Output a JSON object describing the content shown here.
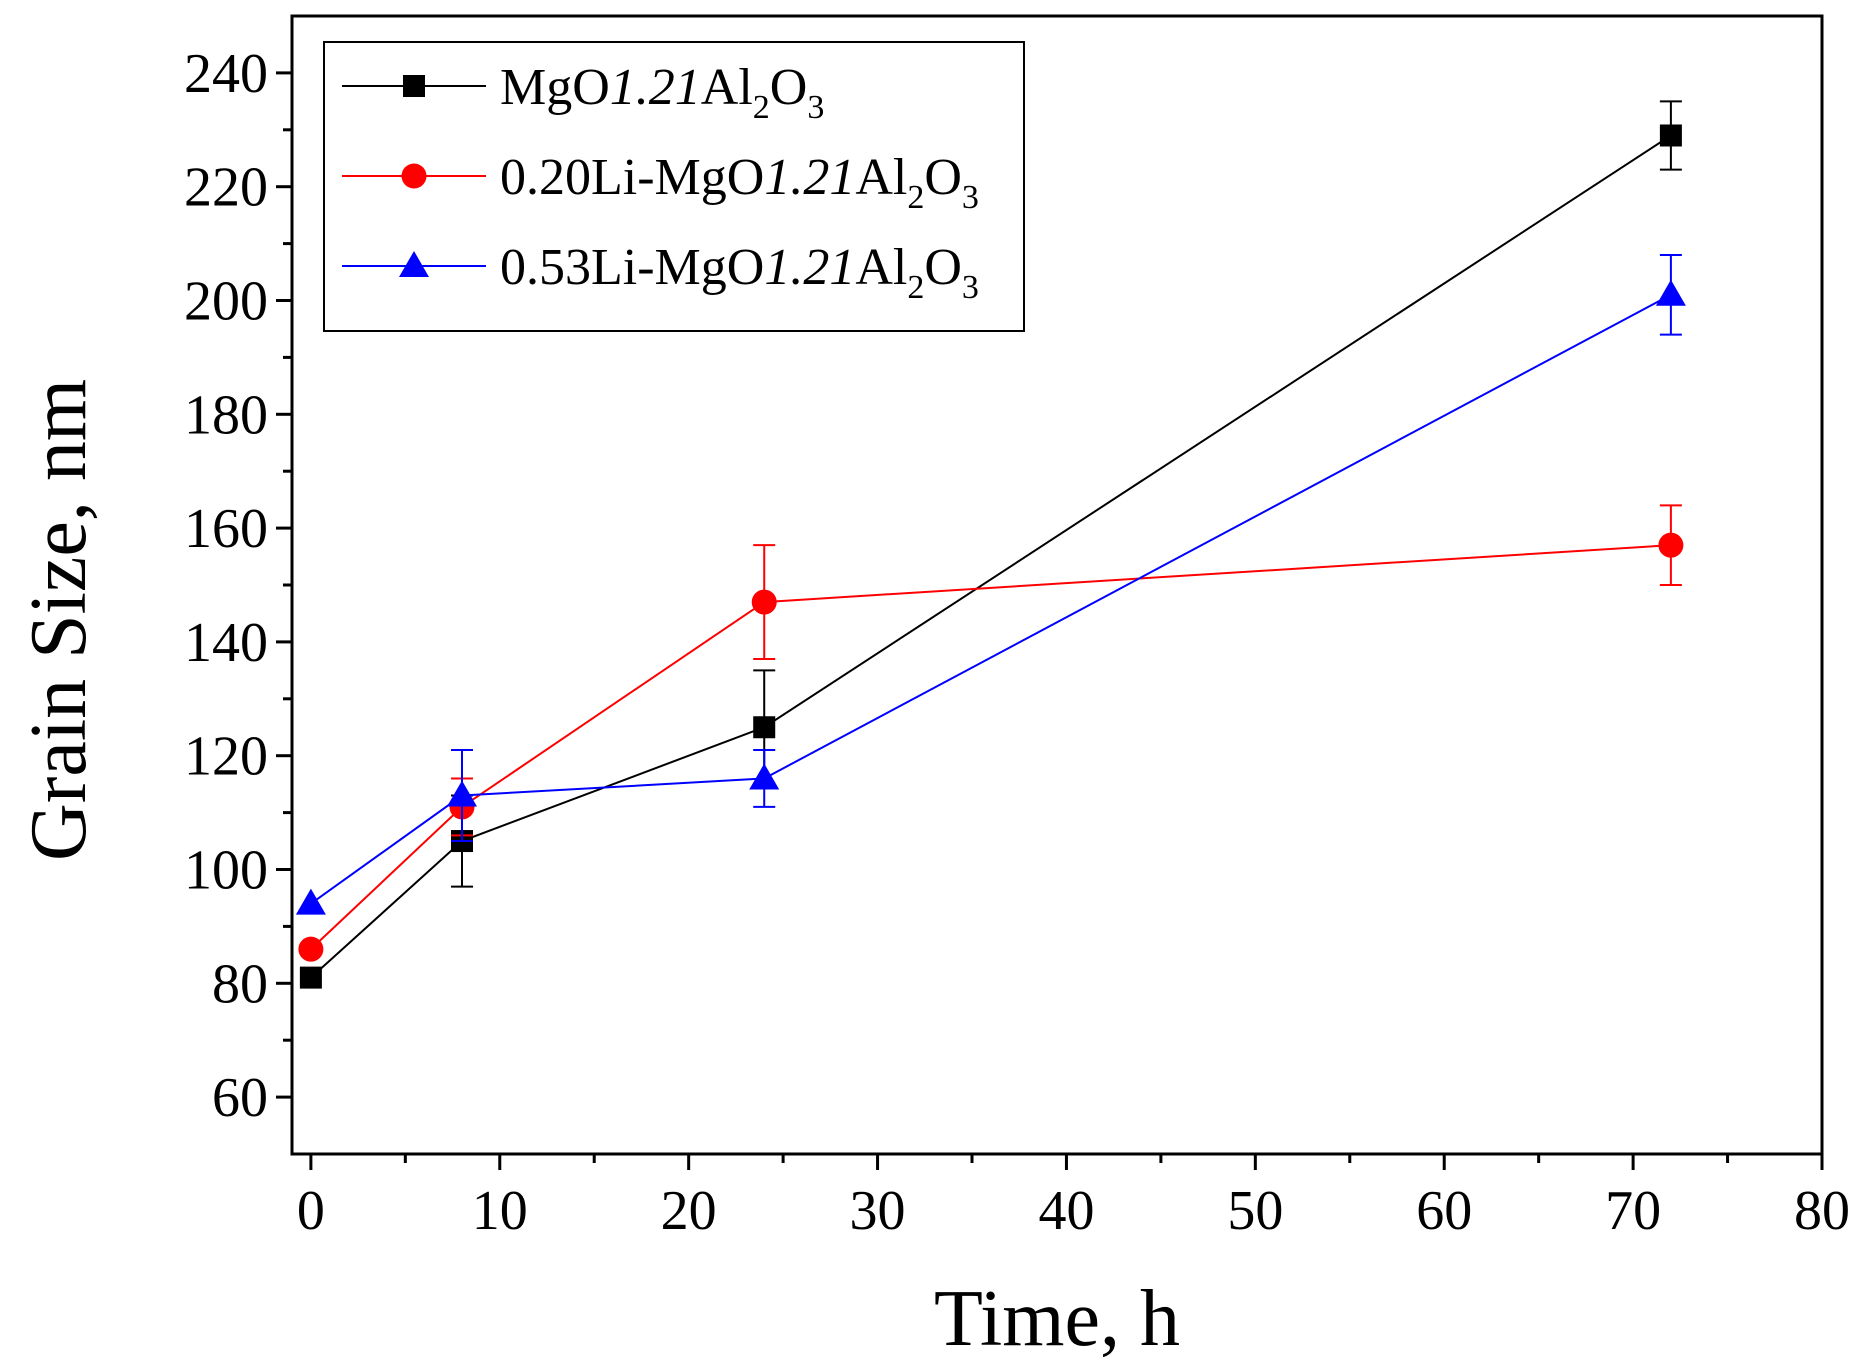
{
  "chart_data": {
    "type": "line",
    "xlabel": "Time, h",
    "ylabel": "Grain Size, nm",
    "xlim": [
      -1,
      80
    ],
    "ylim": [
      50,
      250
    ],
    "xticks": [
      0,
      10,
      20,
      30,
      40,
      50,
      60,
      70,
      80
    ],
    "yticks": [
      60,
      80,
      100,
      120,
      140,
      160,
      180,
      200,
      220,
      240
    ],
    "legend_position": "top-left",
    "series": [
      {
        "name_parts": [
          "MgO",
          "1.21",
          "Al",
          "2",
          "O",
          "3"
        ],
        "name_prefix": "",
        "color": "#000000",
        "marker": "square",
        "x": [
          0,
          8,
          24,
          72
        ],
        "y": [
          81,
          105,
          125,
          229
        ],
        "err": [
          0,
          8,
          10,
          6
        ]
      },
      {
        "name_parts": [
          "MgO",
          "1.21",
          "Al",
          "2",
          "O",
          "3"
        ],
        "name_prefix": "0.20Li-",
        "color": "#ff0000",
        "marker": "circle",
        "x": [
          0,
          8,
          24,
          72
        ],
        "y": [
          86,
          111,
          147,
          157
        ],
        "err": [
          0,
          5,
          10,
          7
        ]
      },
      {
        "name_parts": [
          "MgO",
          "1.21",
          "Al",
          "2",
          "O",
          "3"
        ],
        "name_prefix": "0.53Li-",
        "color": "#0000ff",
        "marker": "triangle",
        "x": [
          0,
          8,
          24,
          72
        ],
        "y": [
          94,
          113,
          116,
          201
        ],
        "err": [
          0,
          8,
          5,
          7
        ]
      }
    ]
  }
}
